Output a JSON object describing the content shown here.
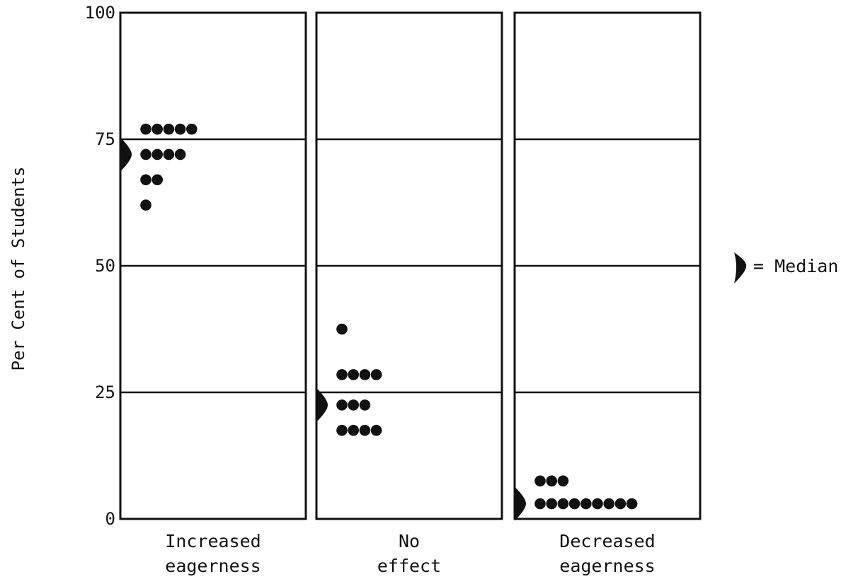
{
  "chart_data": {
    "type": "scatter",
    "subtype": "dot-plot",
    "ylabel": "Per Cent of Students",
    "ylim": [
      0,
      100
    ],
    "yticks": [
      "0",
      "25",
      "50",
      "75",
      "100"
    ],
    "grid": true,
    "legend": {
      "label": "= Median",
      "marker": "median-arrow",
      "placement": "right"
    },
    "panels": [
      {
        "category_lines": [
          "Increased",
          "eagerness"
        ],
        "median": 72,
        "rows": [
          {
            "value": 77,
            "count": 5
          },
          {
            "value": 72,
            "count": 4
          },
          {
            "value": 67,
            "count": 2
          },
          {
            "value": 62,
            "count": 1
          }
        ]
      },
      {
        "category_lines": [
          "No",
          "effect"
        ],
        "median": 22.5,
        "rows": [
          {
            "value": 37.5,
            "count": 1
          },
          {
            "value": 28.5,
            "count": 4
          },
          {
            "value": 22.5,
            "count": 3
          },
          {
            "value": 17.5,
            "count": 4
          }
        ]
      },
      {
        "category_lines": [
          "Decreased",
          "eagerness"
        ],
        "median": 3,
        "rows": [
          {
            "value": 7.5,
            "count": 3
          },
          {
            "value": 3,
            "count": 9
          }
        ]
      }
    ]
  }
}
